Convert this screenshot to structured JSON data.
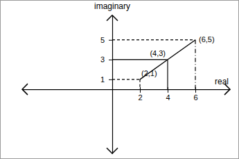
{
  "chart_data": {
    "type": "line",
    "x_label": "real",
    "y_label": "imaginary",
    "x": [
      2,
      4,
      6
    ],
    "values": [
      1,
      3,
      5
    ],
    "point_labels": [
      "(2,1)",
      "(4,3)",
      "(6,5)"
    ],
    "color": "#000000",
    "line_style": "solid",
    "xlim": [
      -6.5,
      8.5
    ],
    "ylim": [
      -6.5,
      7.5
    ],
    "xticks": [
      2,
      4,
      6
    ],
    "yticks": [
      1,
      3,
      5
    ],
    "grid": false
  }
}
